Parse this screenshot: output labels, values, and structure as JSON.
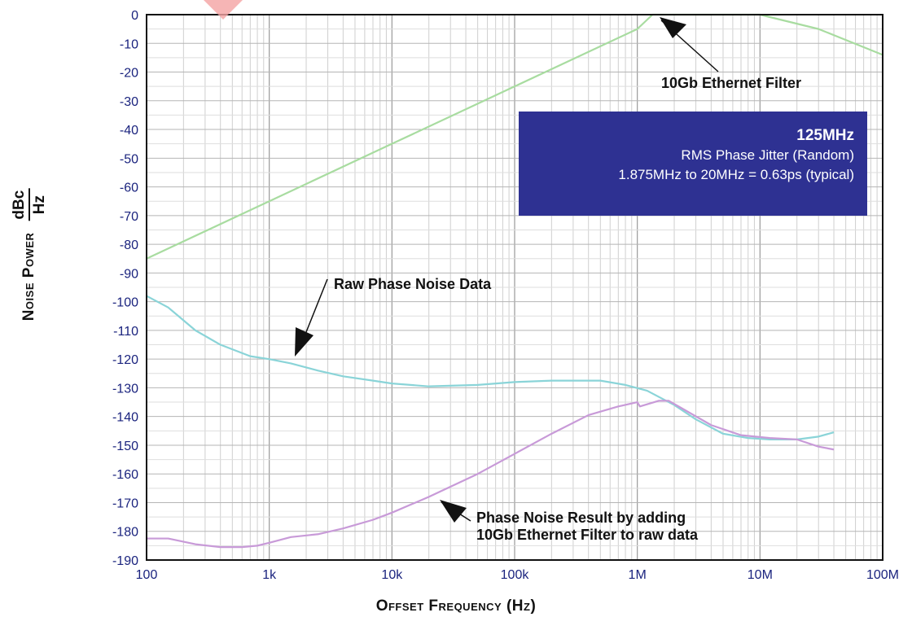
{
  "chart_data": {
    "type": "line",
    "xlabel": "Offset Frequency (Hz)",
    "ylabel": {
      "text": "Noise Power",
      "unit_num": "dBc",
      "unit_den": "Hz"
    },
    "x_scale": "log",
    "xlim": [
      100,
      100000000
    ],
    "ylim": [
      -190,
      0
    ],
    "x_ticks": [
      {
        "value": 100,
        "label": "100"
      },
      {
        "value": 1000,
        "label": "1k"
      },
      {
        "value": 10000,
        "label": "10k"
      },
      {
        "value": 100000,
        "label": "100k"
      },
      {
        "value": 1000000,
        "label": "1M"
      },
      {
        "value": 10000000,
        "label": "10M"
      },
      {
        "value": 100000000,
        "label": "100M"
      }
    ],
    "y_ticks": [
      0,
      -10,
      -20,
      -30,
      -40,
      -50,
      -60,
      -70,
      -80,
      -90,
      -100,
      -110,
      -120,
      -130,
      -140,
      -150,
      -160,
      -170,
      -180,
      -190
    ],
    "grid": true,
    "series": [
      {
        "color": "#a8dca0",
        "points": [
          [
            100,
            -85
          ],
          [
            1000,
            -65
          ],
          [
            10000,
            -45
          ],
          [
            100000,
            -25
          ],
          [
            1000000,
            -5
          ],
          [
            1330000,
            0
          ],
          [
            3000000,
            0
          ],
          [
            10000000,
            0
          ],
          [
            30000000,
            -5
          ],
          [
            100000000,
            -14
          ]
        ]
      },
      {
        "color": "#8ad4d8",
        "points": [
          [
            100,
            -98
          ],
          [
            150,
            -102
          ],
          [
            250,
            -110
          ],
          [
            400,
            -115
          ],
          [
            700,
            -119
          ],
          [
            1000,
            -120
          ],
          [
            1500,
            -121.5
          ],
          [
            2500,
            -124
          ],
          [
            4000,
            -126
          ],
          [
            7000,
            -127.5
          ],
          [
            10000,
            -128.5
          ],
          [
            20000,
            -129.5
          ],
          [
            50000,
            -129
          ],
          [
            100000,
            -128
          ],
          [
            200000,
            -127.5
          ],
          [
            500000,
            -127.5
          ],
          [
            800000,
            -129
          ],
          [
            1200000,
            -131
          ],
          [
            2000000,
            -136
          ],
          [
            3000000,
            -141
          ],
          [
            5000000,
            -146
          ],
          [
            8000000,
            -147.5
          ],
          [
            12000000,
            -148
          ],
          [
            20000000,
            -148
          ],
          [
            30000000,
            -147
          ],
          [
            40000000,
            -145.5
          ]
        ]
      },
      {
        "color": "#c89ad8",
        "points": [
          [
            100,
            -182.5
          ],
          [
            150,
            -182.5
          ],
          [
            250,
            -184.5
          ],
          [
            400,
            -185.5
          ],
          [
            600,
            -185.5
          ],
          [
            800,
            -185
          ],
          [
            1000,
            -184
          ],
          [
            1500,
            -182
          ],
          [
            2500,
            -181
          ],
          [
            4000,
            -179
          ],
          [
            7000,
            -176
          ],
          [
            10000,
            -173.5
          ],
          [
            20000,
            -168
          ],
          [
            50000,
            -160
          ],
          [
            100000,
            -153
          ],
          [
            200000,
            -146
          ],
          [
            400000,
            -139.5
          ],
          [
            700000,
            -136.5
          ],
          [
            1000000,
            -135
          ],
          [
            1050000,
            -136.5
          ],
          [
            1500000,
            -134.5
          ],
          [
            1800000,
            -134.5
          ],
          [
            2500000,
            -138
          ],
          [
            4000000,
            -143
          ],
          [
            7000000,
            -146.5
          ],
          [
            12000000,
            -147.5
          ],
          [
            20000000,
            -148
          ],
          [
            30000000,
            -150.5
          ],
          [
            40000000,
            -151.5
          ]
        ]
      }
    ]
  },
  "info_box": {
    "title": "125MHz",
    "line1": "RMS Phase Jitter (Random)",
    "line2": "1.875MHz to 20MHz = 0.63ps (typical)",
    "background": "#2e3192"
  },
  "annotations": {
    "ethernet_filter": "10Gb Ethernet Filter",
    "raw_phase_noise": "Raw Phase Noise Data",
    "result_line1": "Phase Noise Result by adding",
    "result_line2": "10Gb Ethernet Filter to raw data"
  }
}
